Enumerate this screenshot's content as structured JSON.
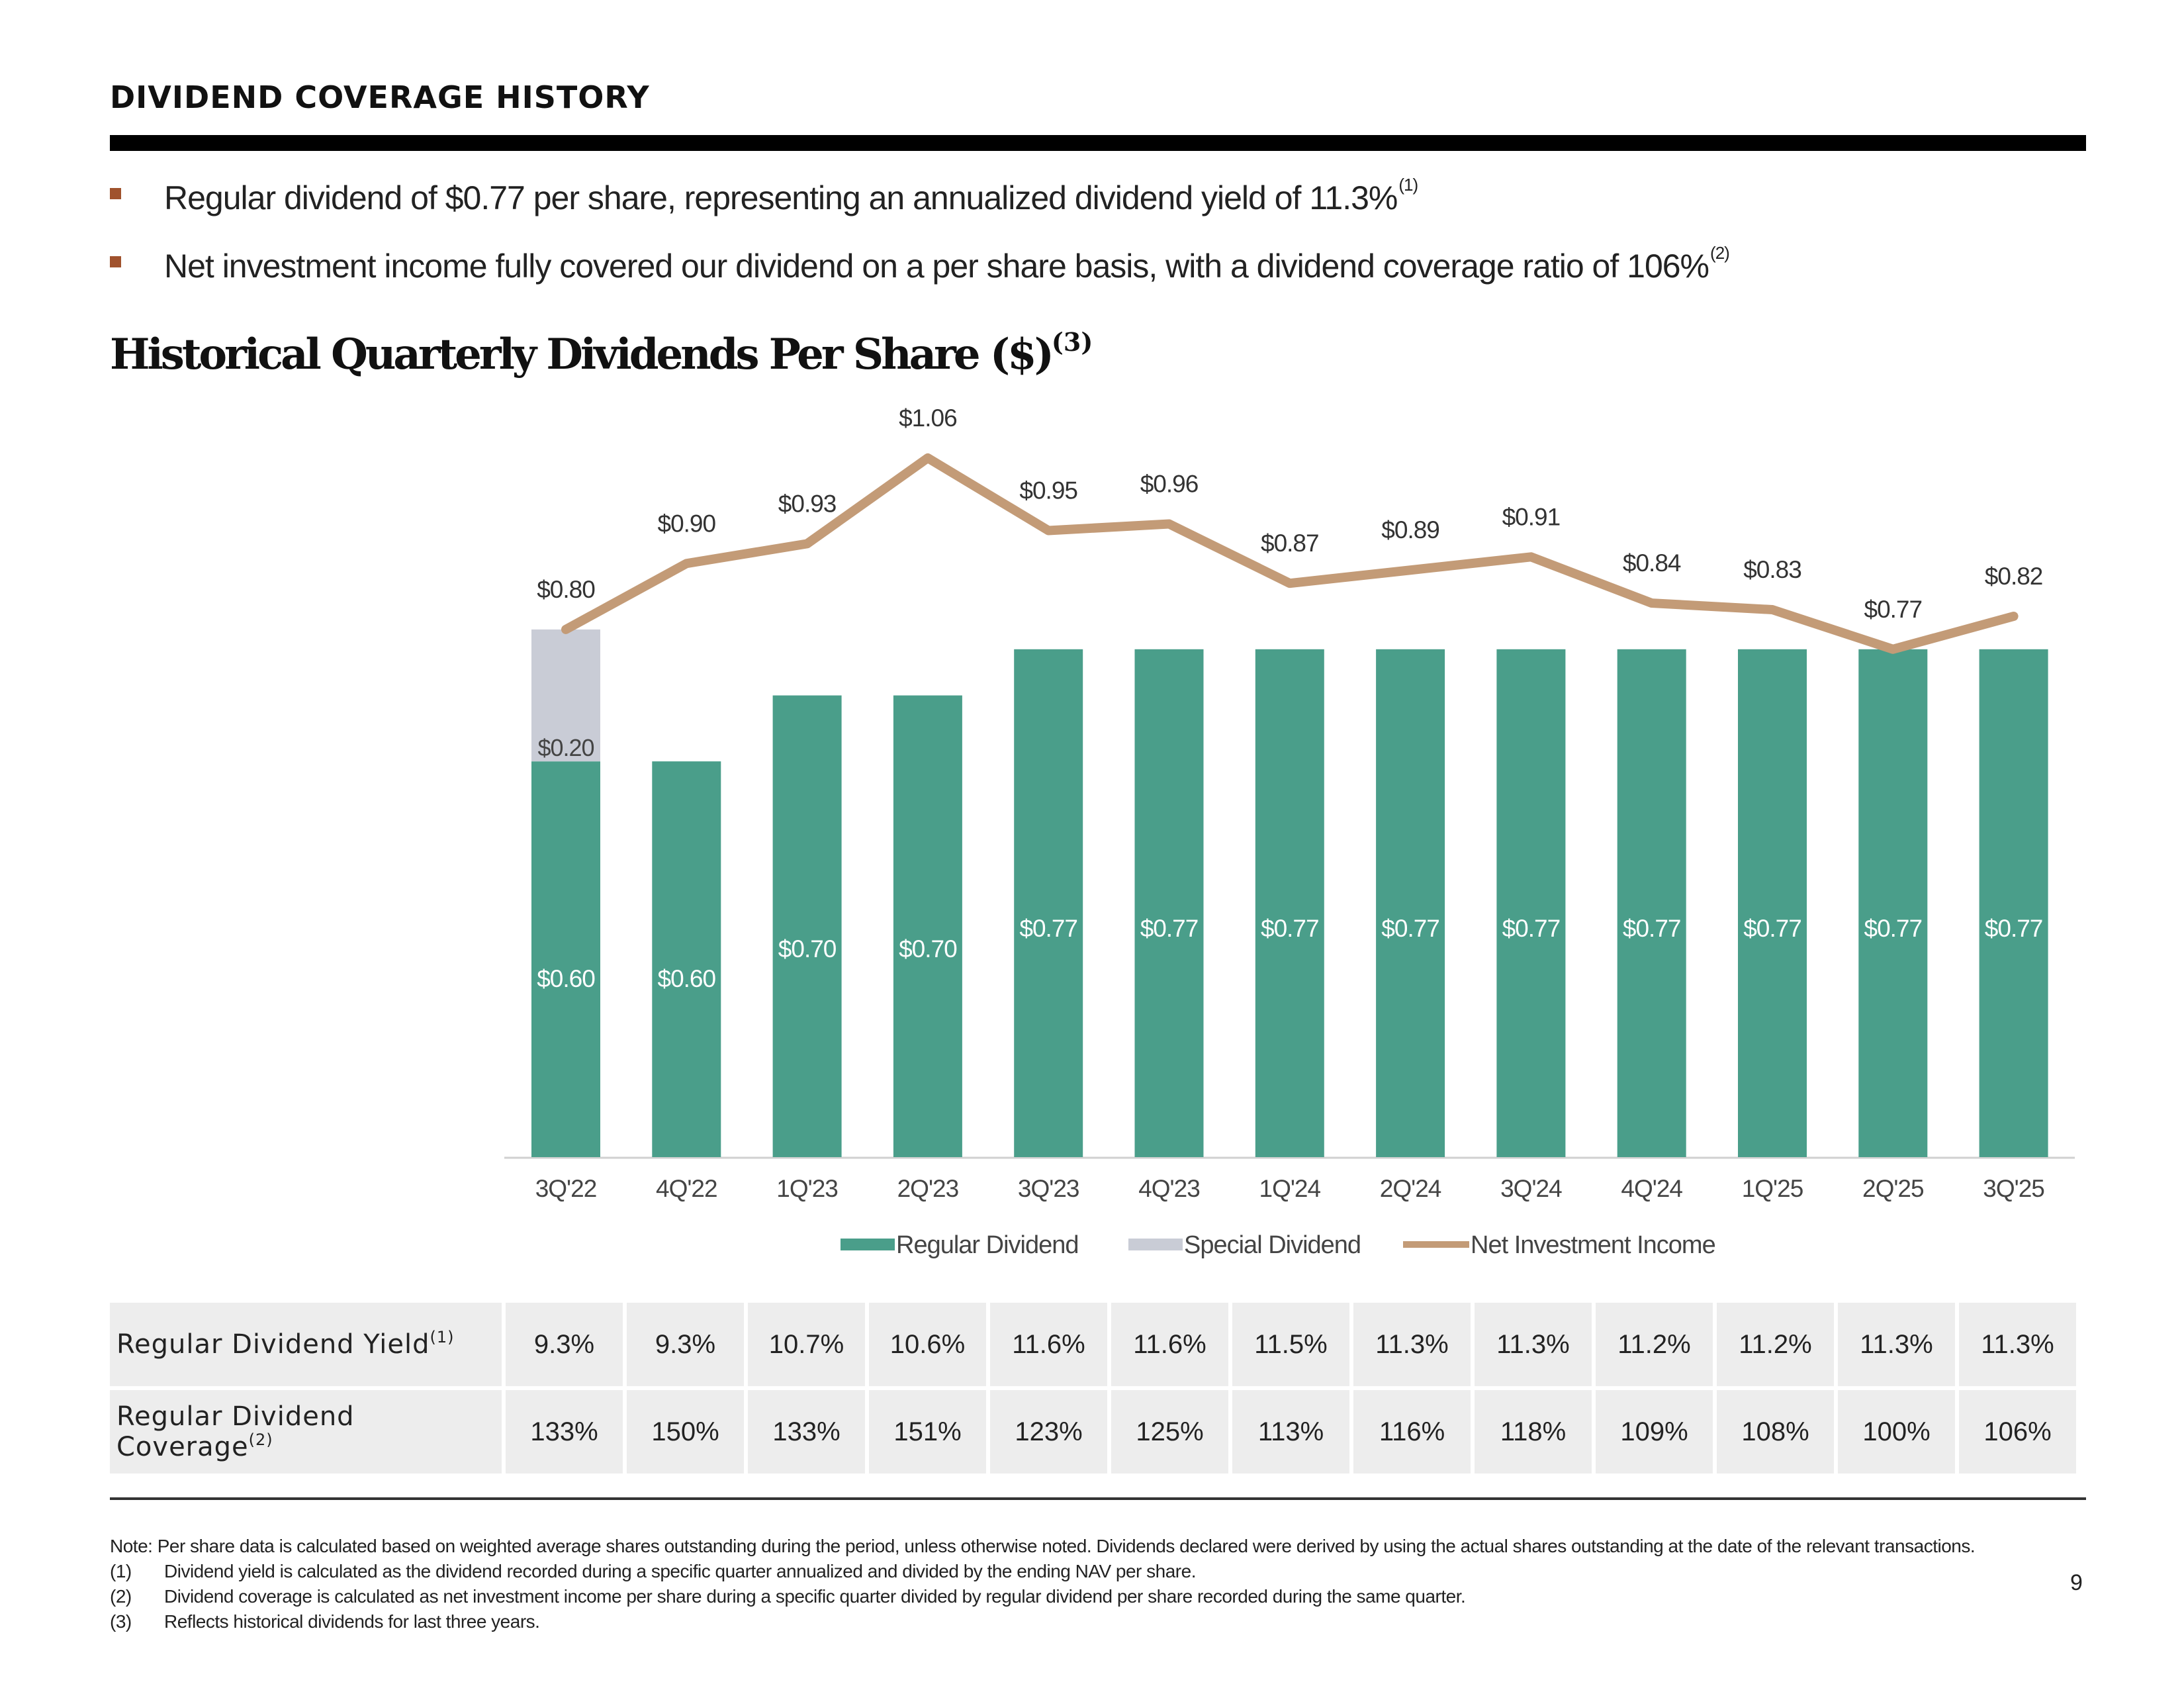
{
  "header": {
    "title": "DIVIDEND COVERAGE HISTORY"
  },
  "bullets": [
    {
      "text": "Regular dividend of $0.77 per share, representing an annualized dividend yield of 11.3%",
      "footnote": "(1)"
    },
    {
      "text": "Net investment income fully covered our dividend on a per share basis, with a dividend coverage ratio of 106%",
      "footnote": "(2)"
    }
  ],
  "colors": {
    "regular_dividend": "#4a9e8a",
    "special_dividend": "#c9ccd6",
    "net_investment_income": "#c39b77",
    "bullet_marker": "#a0522d",
    "table_bg": "#ededed"
  },
  "chart_title": {
    "text": "Historical Quarterly Dividends Per Share ($)",
    "footnote": "(3)"
  },
  "chart_data": {
    "type": "bar",
    "title": "Historical Quarterly Dividends Per Share ($)",
    "categories": [
      "3Q'22",
      "4Q'22",
      "1Q'23",
      "2Q'23",
      "3Q'23",
      "4Q'23",
      "1Q'24",
      "2Q'24",
      "3Q'24",
      "4Q'24",
      "1Q'25",
      "2Q'25",
      "3Q'25"
    ],
    "stacked": true,
    "series": [
      {
        "name": "Regular Dividend",
        "kind": "bar",
        "values": [
          0.6,
          0.6,
          0.7,
          0.7,
          0.77,
          0.77,
          0.77,
          0.77,
          0.77,
          0.77,
          0.77,
          0.77,
          0.77
        ],
        "labels": [
          "$0.60",
          "$0.60",
          "$0.70",
          "$0.70",
          "$0.77",
          "$0.77",
          "$0.77",
          "$0.77",
          "$0.77",
          "$0.77",
          "$0.77",
          "$0.77",
          "$0.77"
        ]
      },
      {
        "name": "Special Dividend",
        "kind": "bar",
        "values": [
          0.2,
          0,
          0,
          0,
          0,
          0,
          0,
          0,
          0,
          0,
          0,
          0,
          0
        ],
        "labels": [
          "$0.20",
          "",
          "",
          "",
          "",
          "",
          "",
          "",
          "",
          "",
          "",
          "",
          ""
        ]
      },
      {
        "name": "Net Investment Income",
        "kind": "line",
        "values": [
          0.8,
          0.9,
          0.93,
          1.06,
          0.95,
          0.96,
          0.87,
          0.89,
          0.91,
          0.84,
          0.83,
          0.77,
          0.82
        ],
        "labels": [
          "$0.80",
          "$0.90",
          "$0.93",
          "$1.06",
          "$0.95",
          "$0.96",
          "$0.87",
          "$0.89",
          "$0.91",
          "$0.84",
          "$0.83",
          "$0.77",
          "$0.82"
        ]
      }
    ],
    "ylim": [
      0,
      1.1
    ],
    "grid": false,
    "legend": "bottom-center"
  },
  "table": {
    "rows": [
      {
        "label": "Regular Dividend Yield",
        "footnote": "(1)",
        "values": [
          "9.3%",
          "9.3%",
          "10.7%",
          "10.6%",
          "11.6%",
          "11.6%",
          "11.5%",
          "11.3%",
          "11.3%",
          "11.2%",
          "11.2%",
          "11.3%",
          "11.3%"
        ]
      },
      {
        "label": "Regular Dividend Coverage",
        "footnote": "(2)",
        "values": [
          "133%",
          "150%",
          "133%",
          "151%",
          "123%",
          "125%",
          "113%",
          "116%",
          "118%",
          "109%",
          "108%",
          "100%",
          "106%"
        ]
      }
    ]
  },
  "notes": {
    "note": "Note: Per share data is calculated based on weighted average shares outstanding during the period, unless otherwise noted. Dividends declared were derived by using the actual shares outstanding at the date of the relevant transactions.",
    "footnotes": [
      {
        "num": "(1)",
        "text": "Dividend yield is calculated as the dividend recorded during a specific quarter annualized and divided by the ending NAV per share."
      },
      {
        "num": "(2)",
        "text": "Dividend coverage is calculated as net investment income per share during a specific quarter divided by regular dividend per share recorded during the same quarter."
      },
      {
        "num": "(3)",
        "text": "Reflects historical dividends for last three years."
      }
    ]
  },
  "page_number": "9"
}
